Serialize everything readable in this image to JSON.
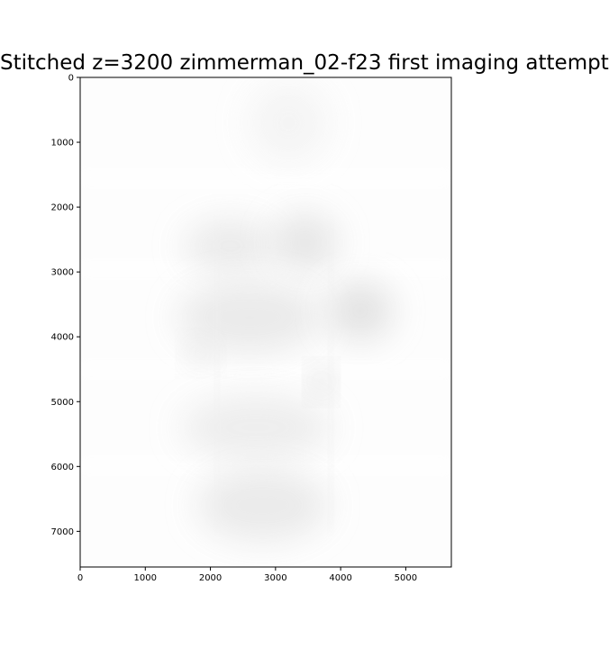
{
  "chart_data": {
    "type": "heatmap",
    "title": "Stitched z=3200 zimmerman_02-f23 first imaging attempt",
    "xlabel": "",
    "ylabel": "",
    "xlim": [
      0,
      5700
    ],
    "ylim": [
      7550,
      0
    ],
    "x_ticks": [
      0,
      1000,
      2000,
      3000,
      4000,
      5000
    ],
    "y_ticks": [
      0,
      1000,
      2000,
      3000,
      4000,
      5000,
      6000,
      7000
    ],
    "colormap": "gray",
    "grid": false,
    "blobs": [
      {
        "cx": 2300,
        "cy": 2600,
        "rx": 700,
        "ry": 400,
        "level": 0.06
      },
      {
        "cx": 3450,
        "cy": 2550,
        "rx": 500,
        "ry": 450,
        "level": 0.07
      },
      {
        "cx": 2600,
        "cy": 3700,
        "rx": 1100,
        "ry": 550,
        "level": 0.06
      },
      {
        "cx": 4300,
        "cy": 3600,
        "rx": 500,
        "ry": 450,
        "level": 0.08
      },
      {
        "cx": 2700,
        "cy": 5400,
        "rx": 1150,
        "ry": 500,
        "level": 0.05
      },
      {
        "cx": 2800,
        "cy": 6600,
        "rx": 1000,
        "ry": 550,
        "level": 0.06
      },
      {
        "cx": 3200,
        "cy": 700,
        "rx": 600,
        "ry": 600,
        "level": 0.03
      },
      {
        "cx": 3700,
        "cy": 4700,
        "rx": 150,
        "ry": 200,
        "level": 0.12
      },
      {
        "cx": 1850,
        "cy": 4250,
        "rx": 200,
        "ry": 200,
        "level": 0.07
      }
    ],
    "bright_bands_y": [
      1550,
      2950,
      4500,
      6000
    ],
    "vertical_seams_x": [
      3850,
      2100
    ]
  }
}
